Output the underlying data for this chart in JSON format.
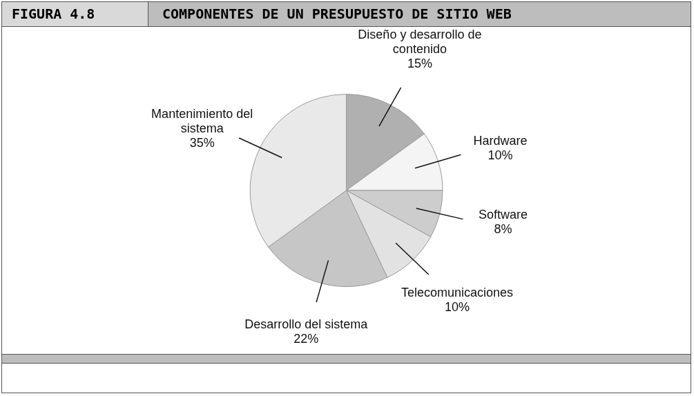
{
  "chart_data": {
    "type": "pie",
    "subtitle": "FIGURA 4.8",
    "title": "COMPONENTES DE UN PRESUPUESTO DE SITIO WEB",
    "categories": [
      "Diseño y desarrollo de contenido",
      "Hardware",
      "Software",
      "Telecomunicaciones",
      "Desarrollo del sistema",
      "Mantenimiento del sistema"
    ],
    "values": [
      15,
      10,
      8,
      10,
      22,
      35
    ],
    "value_labels": [
      "15%",
      "10%",
      "8%",
      "10%",
      "22%",
      "35%"
    ],
    "colors": [
      "#b0b0b0",
      "#f4f4f4",
      "#cdcdcd",
      "#e2e2e2",
      "#c6c6c6",
      "#e9e9e9"
    ],
    "legend": false
  }
}
